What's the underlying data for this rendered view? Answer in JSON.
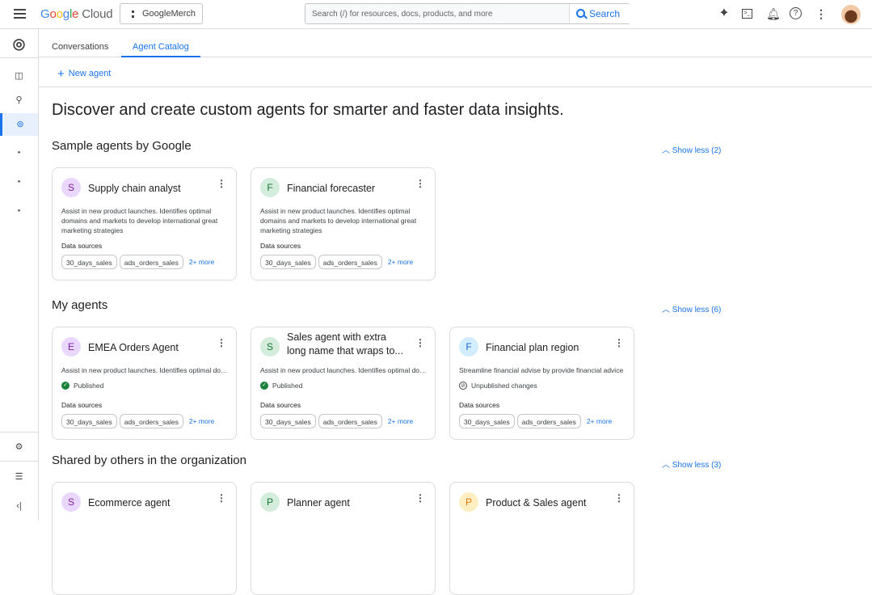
{
  "topbar": {
    "logo": "Google Cloud",
    "project": "GoogleMerch",
    "search_placeholder": "Search (/) for resources, docs, products, and more",
    "search_button": "Search",
    "icons": [
      "gemini-icon",
      "terminal-icon",
      "bell-icon",
      "help-icon",
      "more-vert-icon"
    ]
  },
  "tabs": [
    {
      "label": "Conversations",
      "active": false
    },
    {
      "label": "Agent Catalog",
      "active": true
    }
  ],
  "new_agent": "New agent",
  "heading": "Discover and create custom agents for smarter and faster data insights.",
  "data_sources_label": "Data sources",
  "sections": [
    {
      "title": "Sample agents by Google",
      "toggle": "Show less (2)",
      "cards": [
        {
          "initial": "S",
          "color": "#e9d7fd",
          "fg": "#7b1fa2",
          "title": "Supply chain analyst",
          "desc": "Assist in new product launches. Identifies optimal domains and markets to develop international great marketing strategies",
          "chips": [
            "30_days_sales",
            "ads_orders_sales"
          ],
          "more": "2+ more"
        },
        {
          "initial": "F",
          "color": "#d3ecdb",
          "fg": "#137333",
          "title": "Financial forecaster",
          "desc": "Assist in new product launches. Identifies optimal domains and markets to develop international great marketing strategies",
          "chips": [
            "30_days_sales",
            "ads_orders_sales"
          ],
          "more": "2+ more"
        }
      ]
    },
    {
      "title": "My agents",
      "toggle": "Show less (6)",
      "cards": [
        {
          "initial": "E",
          "color": "#e9d7fd",
          "fg": "#7b1fa2",
          "title": "EMEA Orders Agent",
          "desc": "Assist in new product launches. Identifies optimal domains and markets",
          "status": "Published",
          "status_type": "published",
          "chips": [
            "30_days_sales",
            "ads_orders_sales"
          ],
          "more": "2+ more"
        },
        {
          "initial": "S",
          "color": "#d3ecdb",
          "fg": "#137333",
          "title": "Sales agent with extra long name that wraps to...",
          "desc": "Assist in new product launches. Identifies optimal domains and markets",
          "status": "Published",
          "status_type": "published",
          "chips": [
            "30_days_sales",
            "ads_orders_sales"
          ],
          "more": "2+ more"
        },
        {
          "initial": "F",
          "color": "#d2eefc",
          "fg": "#1967d2",
          "title": "Financial plan region",
          "desc": "Streamline financial advise by provide financial advice",
          "status": "Unpublished changes",
          "status_type": "unpublished",
          "chips": [
            "30_days_sales",
            "ads_orders_sales"
          ],
          "more": "2+ more"
        }
      ]
    },
    {
      "title": "Shared by others in the organization",
      "toggle": "Show less (3)",
      "cards": [
        {
          "initial": "S",
          "color": "#e9d7fd",
          "fg": "#7b1fa2",
          "title": "Ecommerce agent"
        },
        {
          "initial": "P",
          "color": "#d3ecdb",
          "fg": "#137333",
          "title": "Planner agent"
        },
        {
          "initial": "P",
          "color": "#feefc3",
          "fg": "#e37400",
          "title": "Product & Sales agent"
        }
      ]
    }
  ],
  "rail": {
    "items": [
      "dashboard-icon",
      "search-icon",
      "agent-icon",
      "dot-icon",
      "dot-icon",
      "dot-icon"
    ],
    "bottom": [
      "settings-icon",
      "notes-icon",
      "collapse-icon"
    ]
  }
}
